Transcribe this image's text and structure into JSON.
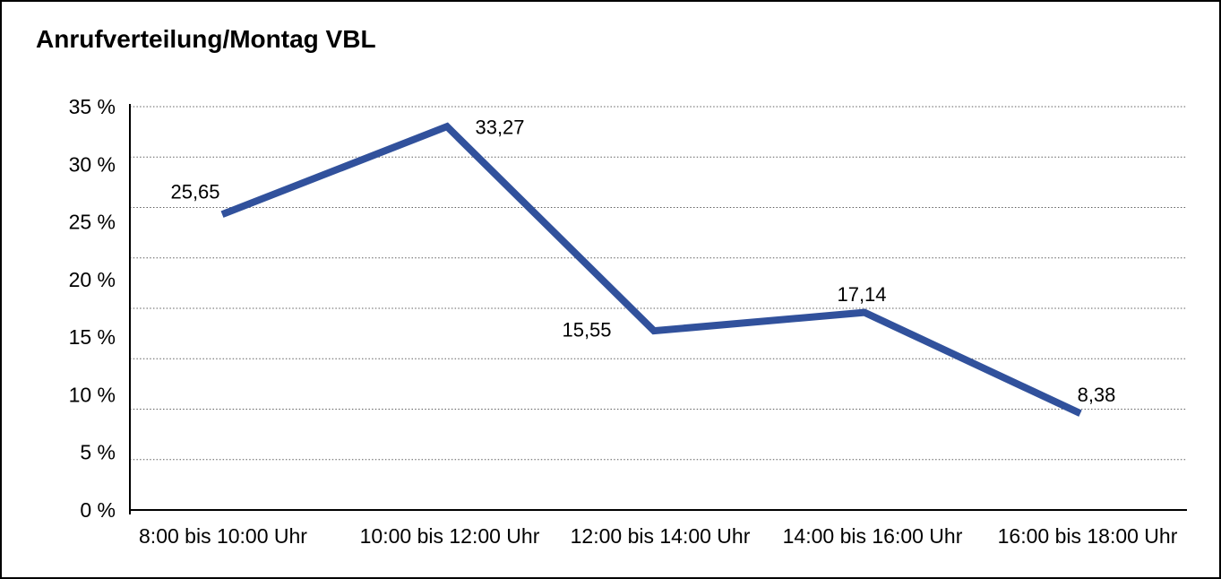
{
  "window": {
    "background": "#ffffff",
    "border_color": "#000000"
  },
  "chart_data": {
    "type": "line",
    "title": "Anrufverteilung/Montag VBL",
    "categories": [
      "8:00 bis 10:00 Uhr",
      "10:00 bis 12:00 Uhr",
      "12:00 bis 14:00 Uhr",
      "14:00 bis 16:00 Uhr",
      "16:00 bis 18:00 Uhr"
    ],
    "values": [
      25.65,
      33.27,
      15.55,
      17.14,
      8.38
    ],
    "data_labels": [
      "25,65",
      "33,27",
      "15,55",
      "17,14",
      "8,38"
    ],
    "unit": "%",
    "xlabel": "",
    "ylabel": "",
    "y_tick_labels": [
      "35 %",
      "30 %",
      "25 %",
      "20 %",
      "15 %",
      "10 %",
      "5 %",
      "0 %"
    ],
    "ylim": [
      0,
      35
    ],
    "grid": "horizontal-dotted",
    "legend": "none",
    "line_color": "#31519C",
    "axis_color": "#000000",
    "grid_color": "#5f5f5f",
    "text_color": "#000000"
  }
}
